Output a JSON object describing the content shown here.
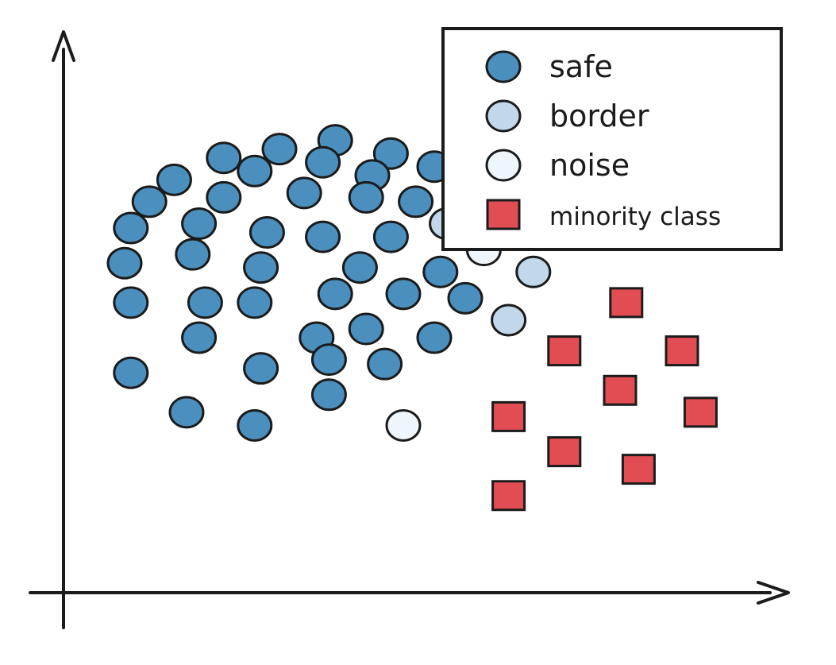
{
  "chart_data": {
    "type": "scatter",
    "title": "",
    "xlabel": "",
    "ylabel": "",
    "xlim": [
      0,
      100
    ],
    "ylim": [
      0,
      100
    ],
    "grid": false,
    "axis_ticks": false,
    "legend_position": "top-right",
    "series": [
      {
        "name": "safe",
        "marker": "circle",
        "color": "#4a8fbd",
        "points": [
          [
            21,
            89
          ],
          [
            30,
            91
          ],
          [
            39,
            93
          ],
          [
            48,
            90
          ],
          [
            13,
            84
          ],
          [
            26,
            86
          ],
          [
            37,
            88
          ],
          [
            45,
            85
          ],
          [
            55,
            87
          ],
          [
            9,
            79
          ],
          [
            21,
            80
          ],
          [
            34,
            81
          ],
          [
            44,
            80
          ],
          [
            52,
            79
          ],
          [
            6,
            73
          ],
          [
            17,
            74
          ],
          [
            28,
            72
          ],
          [
            37,
            71
          ],
          [
            48,
            71
          ],
          [
            5,
            65
          ],
          [
            16,
            67
          ],
          [
            27,
            64
          ],
          [
            43,
            64
          ],
          [
            56,
            63
          ],
          [
            6,
            56
          ],
          [
            18,
            56
          ],
          [
            26,
            56
          ],
          [
            39,
            58
          ],
          [
            50,
            58
          ],
          [
            60,
            57
          ],
          [
            17,
            48
          ],
          [
            36,
            48
          ],
          [
            44,
            50
          ],
          [
            55,
            48
          ],
          [
            6,
            40
          ],
          [
            27,
            41
          ],
          [
            38,
            43
          ],
          [
            47,
            42
          ],
          [
            15,
            31
          ],
          [
            26,
            28
          ],
          [
            38,
            35
          ]
        ]
      },
      {
        "name": "border",
        "marker": "circle",
        "color": "#c2d8ea",
        "points": [
          [
            57,
            74
          ],
          [
            71,
            63
          ],
          [
            67,
            52
          ]
        ]
      },
      {
        "name": "noise",
        "marker": "circle",
        "color": "#eef6fb",
        "points": [
          [
            63,
            68
          ],
          [
            50,
            28
          ]
        ]
      },
      {
        "name": "minority class",
        "marker": "square",
        "color": "#e14d52",
        "points": [
          [
            86,
            56
          ],
          [
            76,
            45
          ],
          [
            95,
            45
          ],
          [
            85,
            36
          ],
          [
            67,
            30
          ],
          [
            76,
            22
          ],
          [
            98,
            31
          ],
          [
            88,
            18
          ],
          [
            67,
            12
          ]
        ]
      }
    ]
  }
}
